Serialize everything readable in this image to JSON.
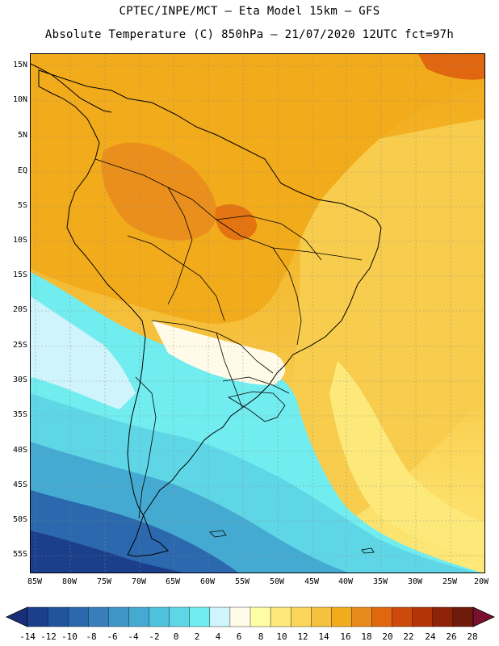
{
  "header": {
    "line1": "CPTEC/INPE/MCT –  Eta Model 15km – GFS",
    "line2": "Absolute Temperature (C) 850hPa – 21/07/2020 12UTC fct=97h"
  },
  "map": {
    "lat_labels": [
      "15N",
      "10N",
      "5N",
      "EQ",
      "5S",
      "10S",
      "15S",
      "20S",
      "25S",
      "30S",
      "35S",
      "40S",
      "45S",
      "50S",
      "55S"
    ],
    "lon_labels": [
      "85W",
      "80W",
      "75W",
      "70W",
      "65W",
      "60W",
      "55W",
      "50W",
      "45W",
      "40W",
      "35W",
      "30W",
      "25W",
      "20W"
    ]
  },
  "colorbar": {
    "labels": [
      "-14",
      "-12",
      "-10",
      "-8",
      "-6",
      "-4",
      "-2",
      "0",
      "2",
      "4",
      "6",
      "8",
      "10",
      "12",
      "14",
      "16",
      "18",
      "20",
      "22",
      "24",
      "26",
      "28"
    ],
    "colors": [
      "#1c3f8c",
      "#22549e",
      "#2b68ad",
      "#3a7dbb",
      "#3f95c6",
      "#45aad2",
      "#4ec2dc",
      "#5fd6e6",
      "#71ecef",
      "#cff4fb",
      "#fffbe8",
      "#fffca6",
      "#fde97a",
      "#fbd65a",
      "#f6c13e",
      "#f2ab1b",
      "#e98a1c",
      "#e0660f",
      "#cc4a0b",
      "#b33407",
      "#8d2209",
      "#6e1b0c"
    ],
    "min_color": "#1a2f7a",
    "max_color": "#7a0f2e"
  }
}
